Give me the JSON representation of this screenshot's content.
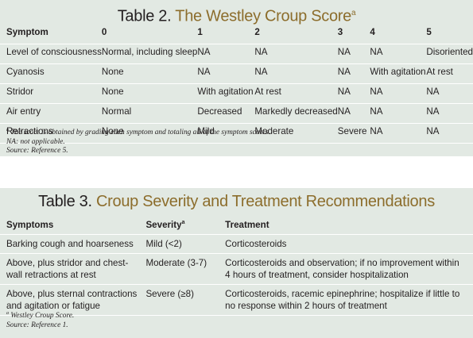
{
  "table2": {
    "title_prefix": "Table 2.",
    "title_accent": "The Westley Croup Score",
    "title_sup": "a",
    "headers": [
      "Symptom",
      "0",
      "1",
      "2",
      "3",
      "4",
      "5"
    ],
    "rows": [
      [
        "Level of consciousness",
        "Normal, including sleep",
        "NA",
        "NA",
        "NA",
        "NA",
        "Disoriented"
      ],
      [
        "Cyanosis",
        "None",
        "NA",
        "NA",
        "NA",
        "With agitation",
        "At rest"
      ],
      [
        "Stridor",
        "None",
        "With agitation",
        "At rest",
        "NA",
        "NA",
        "NA"
      ],
      [
        "Air entry",
        "Normal",
        "Decreased",
        "Markedly decreased",
        "NA",
        "NA",
        "NA"
      ],
      [
        "Retractions",
        "None",
        "Mild",
        "Moderate",
        "Severe",
        "NA",
        "NA"
      ]
    ],
    "notes": [
      {
        "sup": "a",
        "text": " The score is obtained by grading each symptom and totaling all of the symptom scores."
      },
      {
        "sup": "",
        "text": "NA: not applicable."
      },
      {
        "sup": "",
        "text": "Source: Reference 5."
      }
    ]
  },
  "table3": {
    "title_prefix": "Table 3.",
    "title_accent": "Croup Severity and Treatment Recommendations",
    "headers": {
      "symptoms": "Symptoms",
      "severity": "Severity",
      "severity_sup": "a",
      "treatment": "Treatment"
    },
    "rows": [
      [
        "Barking cough and hoarseness",
        "Mild (<2)",
        "Corticosteroids"
      ],
      [
        "Above, plus stridor and chest-wall retractions at rest",
        "Moderate (3-7)",
        "Corticosteroids and observation; if no improvement within 4 hours of treatment, consider hospitalization"
      ],
      [
        "Above, plus sternal contractions and agitation or fatigue",
        "Severe (≥8)",
        "Corticosteroids, racemic epinephrine; hospitalize if little to no response within 2 hours of treatment"
      ]
    ],
    "notes": [
      {
        "sup": "a",
        "text": " Westley Croup Score."
      },
      {
        "sup": "",
        "text": "Source: Reference 1."
      }
    ]
  }
}
